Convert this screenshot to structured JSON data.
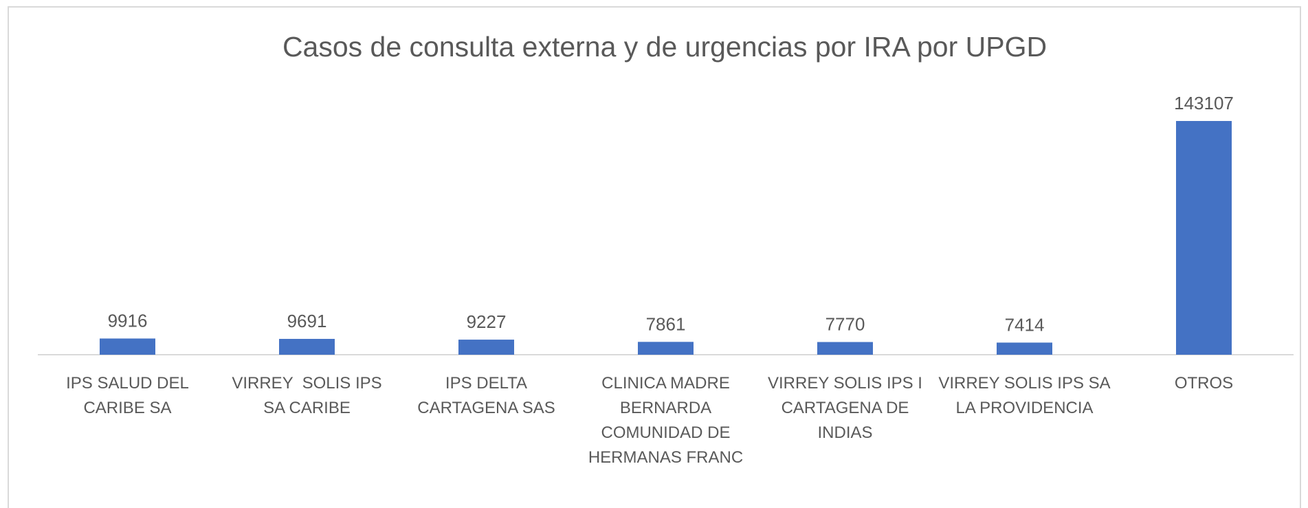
{
  "chart_data": {
    "type": "bar",
    "title": "Casos de consulta externa y de urgencias por IRA por UPGD",
    "categories": [
      "IPS SALUD DEL CARIBE SA",
      "VIRREY  SOLIS IPS SA CARIBE",
      "IPS DELTA CARTAGENA SAS",
      "CLINICA MADRE BERNARDA COMUNIDAD DE HERMANAS FRANC",
      "VIRREY SOLIS IPS I CARTAGENA DE INDIAS",
      "VIRREY SOLIS IPS SA LA PROVIDENCIA",
      "OTROS"
    ],
    "values": [
      9916,
      9691,
      9227,
      7861,
      7770,
      7414,
      143107
    ],
    "color": "#4472c4"
  }
}
